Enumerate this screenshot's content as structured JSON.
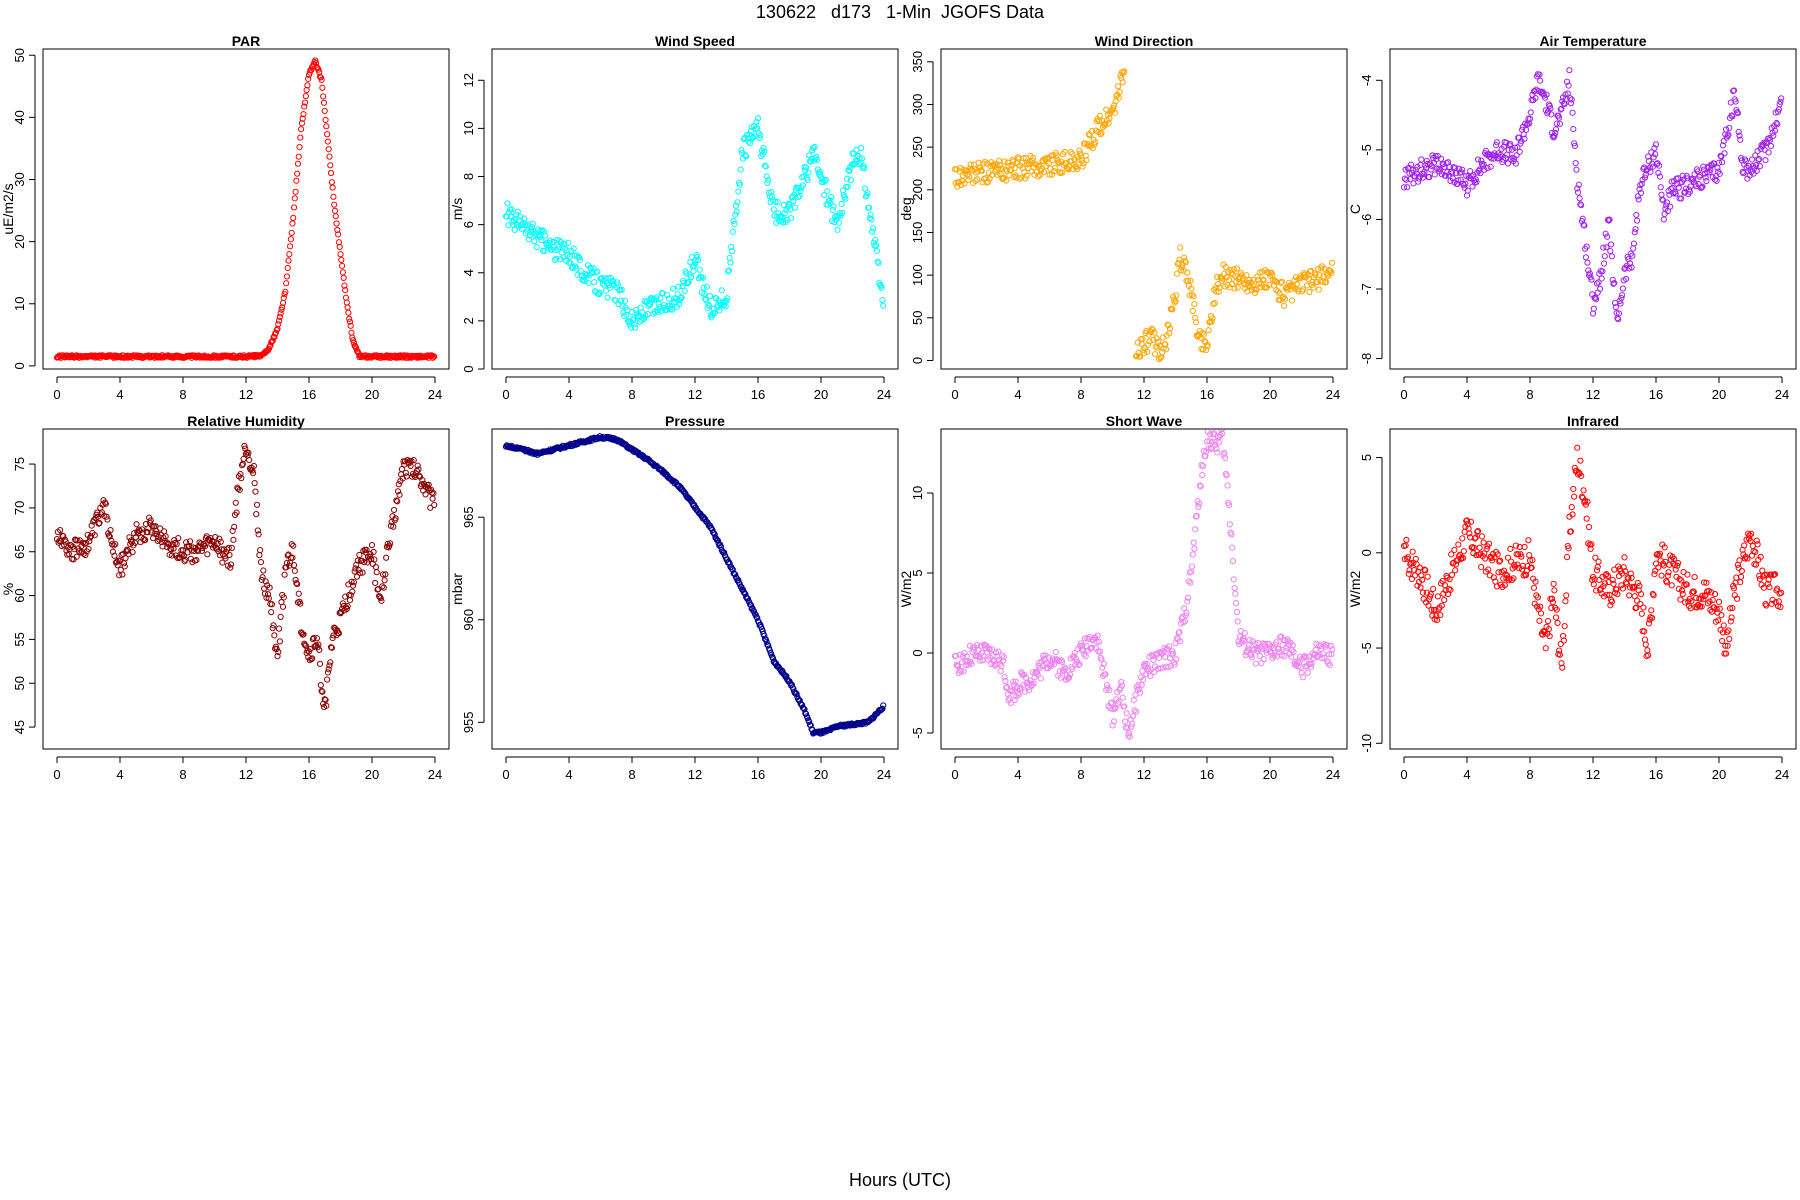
{
  "figure": {
    "title": "130622   d173   1-Min  JGOFS Data",
    "xlabel": "Hours (UTC)"
  },
  "chart_data": [
    {
      "type": "scatter",
      "title": "PAR",
      "ylabel": "uE/m2/s",
      "color": "#ff0000",
      "xlim": [
        0,
        24
      ],
      "ylim": [
        -0.5,
        51
      ],
      "xticks": [
        0,
        4,
        8,
        12,
        16,
        20,
        24
      ],
      "yticks": [
        0,
        10,
        20,
        30,
        40,
        50
      ],
      "series": [
        {
          "x": [
            0,
            2,
            4,
            6,
            8,
            10,
            12,
            13,
            13.5,
            14,
            14.5,
            15,
            15.5,
            16,
            16.4,
            16.8,
            17.2,
            17.6,
            18,
            18.4,
            18.8,
            19.2,
            20,
            22,
            24
          ],
          "y": [
            1.5,
            1.5,
            1.5,
            1.5,
            1.5,
            1.5,
            1.5,
            1.6,
            3,
            6,
            12,
            24,
            38,
            47,
            49,
            46,
            36,
            26,
            18,
            10,
            4,
            1.5,
            1.5,
            1.5,
            1.5
          ]
        }
      ]
    },
    {
      "type": "scatter",
      "title": "Wind Speed",
      "ylabel": "m/s",
      "color": "#00ffff",
      "xlim": [
        0,
        24
      ],
      "ylim": [
        0,
        13.3
      ],
      "xticks": [
        0,
        4,
        8,
        12,
        16,
        20,
        24
      ],
      "yticks": [
        0,
        2,
        4,
        6,
        8,
        10,
        12
      ],
      "series": [
        {
          "x": [
            0,
            1,
            2,
            3,
            4,
            5,
            6,
            7,
            8,
            9,
            10,
            11,
            12,
            13,
            14,
            15,
            15.5,
            16,
            17,
            18,
            19,
            19.5,
            20,
            21,
            22,
            22.5,
            23,
            24
          ],
          "y": [
            6.5,
            6,
            5.5,
            5,
            4.8,
            4,
            3.5,
            3.3,
            2,
            2.5,
            2.8,
            3,
            4.5,
            2.5,
            3,
            9,
            9.5,
            10,
            6.5,
            6.5,
            8,
            9,
            8,
            6,
            8.5,
            9,
            7,
            2.5
          ]
        }
      ]
    },
    {
      "type": "scatter",
      "title": "Wind Direction",
      "ylabel": "deg",
      "color": "#ffa500",
      "xlim": [
        0,
        24
      ],
      "ylim": [
        -10,
        365
      ],
      "xticks": [
        0,
        4,
        8,
        12,
        16,
        20,
        24
      ],
      "yticks": [
        0,
        50,
        100,
        150,
        200,
        250,
        300,
        350
      ],
      "series": [
        {
          "x": [
            0,
            2,
            4,
            6,
            8,
            9,
            10,
            10.8,
            11.5,
            12,
            12.5,
            13,
            13.5,
            14,
            14.3,
            14.8,
            15.5,
            16,
            16.5,
            17,
            18,
            19,
            20,
            21,
            22,
            23,
            24
          ],
          "y": [
            215,
            220,
            225,
            230,
            235,
            270,
            290,
            340,
            10,
            20,
            25,
            10,
            30,
            80,
            120,
            100,
            25,
            20,
            80,
            100,
            95,
            90,
            95,
            75,
            90,
            95,
            105
          ]
        }
      ]
    },
    {
      "type": "scatter",
      "title": "Air Temperature",
      "ylabel": "C",
      "color": "#a020f0",
      "xlim": [
        0,
        24
      ],
      "ylim": [
        -8.15,
        -3.55
      ],
      "xticks": [
        0,
        4,
        8,
        12,
        16,
        20,
        24
      ],
      "yticks": [
        -8,
        -7,
        -6,
        -5,
        -4
      ],
      "series": [
        {
          "x": [
            0,
            1,
            2,
            3,
            4,
            5,
            6,
            7,
            8,
            8.5,
            9,
            9.5,
            10,
            10.5,
            11,
            11.5,
            12,
            12.5,
            13,
            13.5,
            14,
            14.5,
            15,
            16,
            16.5,
            17,
            18,
            19,
            20,
            21,
            21.5,
            22,
            23,
            24
          ],
          "y": [
            -5.4,
            -5.3,
            -5.2,
            -5.3,
            -5.5,
            -5.2,
            -5,
            -5.1,
            -4.5,
            -4,
            -4.3,
            -4.7,
            -4.5,
            -4,
            -5.4,
            -6.3,
            -7.2,
            -6.8,
            -6,
            -7.5,
            -6.8,
            -6.5,
            -5.5,
            -5,
            -5.9,
            -5.6,
            -5.5,
            -5.4,
            -5.3,
            -4.2,
            -5.2,
            -5.3,
            -5,
            -4.3
          ]
        }
      ]
    },
    {
      "type": "scatter",
      "title": "Relative Humidity",
      "ylabel": "%",
      "color": "#8b0000",
      "xlim": [
        0,
        24
      ],
      "ylim": [
        42.5,
        79
      ],
      "xticks": [
        0,
        4,
        8,
        12,
        16,
        20,
        24
      ],
      "yticks": [
        45,
        50,
        55,
        60,
        65,
        70,
        75
      ],
      "series": [
        {
          "x": [
            0,
            1,
            2,
            3,
            4,
            5,
            6,
            7,
            8,
            9,
            10,
            11,
            11.5,
            12,
            12.5,
            13,
            13.5,
            14,
            14.5,
            15,
            15.5,
            16,
            16.5,
            17,
            17.5,
            18,
            19,
            20,
            20.5,
            21,
            22,
            23,
            24
          ],
          "y": [
            67,
            65,
            66,
            70,
            63,
            67,
            68,
            66,
            65,
            65,
            66,
            64,
            72,
            77,
            74,
            62,
            60,
            53,
            63,
            65,
            57,
            53,
            55,
            47,
            55,
            57,
            63,
            65,
            59,
            65,
            75,
            74,
            70
          ]
        }
      ]
    },
    {
      "type": "scatter",
      "title": "Pressure",
      "ylabel": "mbar",
      "color": "#00008b",
      "xlim": [
        0,
        24
      ],
      "ylim": [
        953.7,
        969.3
      ],
      "xticks": [
        0,
        4,
        8,
        12,
        16,
        20,
        24
      ],
      "yticks": [
        955,
        960,
        965
      ],
      "series": [
        {
          "x": [
            0,
            1,
            2,
            3,
            4,
            5,
            6,
            7,
            8,
            9,
            10,
            11,
            12,
            13,
            14,
            15,
            16,
            17,
            18,
            19,
            19.5,
            20,
            20.5,
            21,
            22,
            23,
            24
          ],
          "y": [
            968.5,
            968.3,
            968.1,
            968.3,
            968.5,
            968.7,
            968.9,
            968.8,
            968.3,
            967.8,
            967.2,
            966.5,
            965.5,
            964.5,
            963,
            961.5,
            960,
            958,
            957,
            955.5,
            954.5,
            954.5,
            954.6,
            954.8,
            954.9,
            955,
            955.8
          ]
        }
      ]
    },
    {
      "type": "scatter",
      "title": "Short Wave",
      "ylabel": "W/m2",
      "color": "#ee82ee",
      "xlim": [
        0,
        24
      ],
      "ylim": [
        -6,
        14
      ],
      "xticks": [
        0,
        4,
        8,
        12,
        16,
        20,
        24
      ],
      "yticks": [
        -5,
        0,
        5,
        10
      ],
      "series": [
        {
          "x": [
            0,
            1,
            2,
            3,
            3.5,
            4,
            5,
            6,
            7,
            8,
            8.5,
            9,
            9.5,
            10,
            10.5,
            11,
            11.5,
            12,
            13,
            14,
            14.5,
            15,
            15.5,
            16,
            16.5,
            17,
            17.5,
            18,
            19,
            20,
            21,
            22,
            23,
            24
          ],
          "y": [
            -0.8,
            -0.2,
            -0.1,
            -0.5,
            -2.8,
            -2,
            -1.5,
            -0.2,
            -1.2,
            0,
            0.8,
            1,
            -1.5,
            -4,
            -2,
            -5,
            -3,
            -1,
            -0.5,
            0,
            2,
            5,
            10,
            13.5,
            13,
            13.5,
            8,
            1,
            0,
            0,
            0.5,
            -1,
            0,
            -0.1
          ]
        }
      ]
    },
    {
      "type": "scatter",
      "title": "Infrared",
      "ylabel": "W/m2",
      "color": "#ff0000",
      "xlim": [
        0,
        24
      ],
      "ylim": [
        -10.3,
        6.5
      ],
      "xticks": [
        0,
        4,
        8,
        12,
        16,
        20,
        24
      ],
      "yticks": [
        -10,
        -5,
        0,
        5
      ],
      "series": [
        {
          "x": [
            0,
            1,
            2,
            3,
            4,
            5,
            6,
            7,
            8,
            8.5,
            9,
            9.5,
            10,
            10.5,
            11,
            11.5,
            12,
            12.5,
            13,
            14,
            15,
            15.5,
            16,
            17,
            18,
            19,
            20,
            20.5,
            21,
            22,
            23,
            24
          ],
          "y": [
            0,
            -1,
            -3,
            -1,
            1,
            0,
            -1,
            -0.5,
            -0.2,
            -3,
            -5,
            -2,
            -6,
            1,
            5,
            3,
            -1,
            -1.5,
            -2,
            -1,
            -2.5,
            -5,
            0,
            -1,
            -2,
            -2,
            -3,
            -5,
            -2,
            1,
            -2,
            -2
          ]
        }
      ]
    }
  ]
}
